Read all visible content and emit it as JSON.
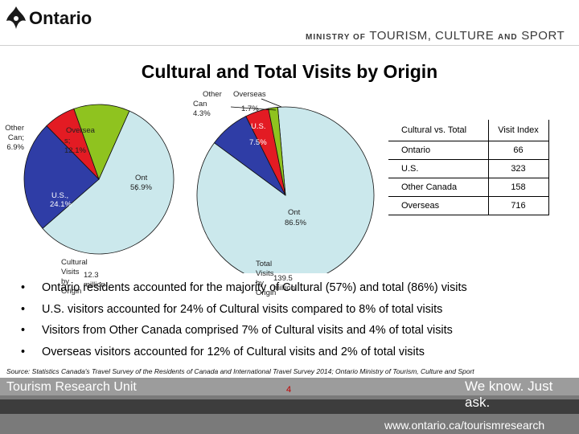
{
  "header": {
    "logo_text": "Ontario",
    "ministry": [
      "MINISTRY OF",
      "TOURISM,",
      "CULTURE",
      "AND",
      "SPORT"
    ]
  },
  "title": "Cultural and Total Visits by Origin",
  "colors": {
    "ont": "#cbe8ec",
    "us": "#2f3da6",
    "other_can": "#e31b23",
    "overseas": "#8fc31f"
  },
  "chart_data": [
    {
      "type": "pie",
      "title": "Cultural Visits by Origin",
      "subtitle": "12.3 million",
      "slices": [
        {
          "key": "ont",
          "label": "Ont ; 56.9%",
          "value": 56.9
        },
        {
          "key": "us",
          "label": "U.S. ; 24.1%",
          "value": 24.1
        },
        {
          "key": "other_can",
          "label": "Other Can; 6.9%",
          "value": 6.9
        },
        {
          "key": "overseas",
          "label": "Oversea s; 12.1%",
          "value": 12.1
        }
      ]
    },
    {
      "type": "pie",
      "title": "Total Visits by Origin",
      "subtitle": "139.5 million",
      "slices": [
        {
          "key": "ont",
          "label": "Ont 86.5%",
          "value": 86.5
        },
        {
          "key": "us",
          "label": "U.S. 7.5%",
          "value": 7.5
        },
        {
          "key": "other_can",
          "label": "Other Can 4.3%",
          "value": 4.3
        },
        {
          "key": "overseas",
          "label": "Overseas 1.7%",
          "value": 1.7
        }
      ]
    }
  ],
  "labels": {
    "pie1": {
      "other_can": "Other Can; 6.9%",
      "overseas_1": "Oversea",
      "overseas_2": "s; 12.1%",
      "ont_1": "Ont ;",
      "ont_2": "56.9%",
      "us_1": "U.S.,",
      "us_2": "24.1%",
      "title": "Cultural Visits by Origin",
      "sub": "12.3 million"
    },
    "pie2": {
      "other_1": "Other",
      "other_2": "Can 4.3%",
      "overseas_1": "Overseas",
      "overseas_2": "1.7%",
      "us_1": "U.S.",
      "us_2": "7.5%",
      "ont_1": "Ont",
      "ont_2": "86.5%",
      "title": "Total Visits by Origin",
      "sub": "139.5 million"
    }
  },
  "table": {
    "headers": [
      "Cultural vs. Total",
      "Visit Index"
    ],
    "rows": [
      [
        "Ontario",
        "66"
      ],
      [
        "U.S.",
        "323"
      ],
      [
        "Other Canada",
        "158"
      ],
      [
        "Overseas",
        "716"
      ]
    ]
  },
  "bullets": [
    "Ontario residents accounted for the majority of Cultural (57%) and total (86%) visits",
    "U.S. visitors accounted for 24% of Cultural visits compared to 8% of total visits",
    "Visitors from Other Canada comprised 7% of Cultural visits and 4% of total visits",
    "Overseas visitors accounted for 12% of Cultural visits and 2% of total visits"
  ],
  "bullet_glyph": "•",
  "source": "Source: Statistics Canada's Travel Survey of the Residents of Canada and International Travel Survey 2014; Ontario Ministry of Tourism, Culture and Sport",
  "footer": {
    "unit": "Tourism Research Unit",
    "slogan": "We know. Just ask.",
    "page_number": "4",
    "url": "www.ontario.ca/tourismresearch"
  }
}
